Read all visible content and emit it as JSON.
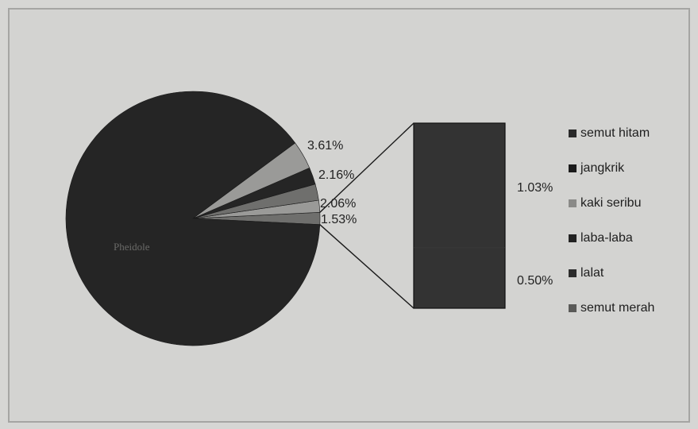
{
  "chart_data": {
    "type": "pie",
    "subtype": "bar-of-pie",
    "slices": [
      {
        "label": "Pheidole",
        "pct": 89.11,
        "value_label": ""
      },
      {
        "label": "semut hitam",
        "pct": 3.61,
        "value_label": "3.61%"
      },
      {
        "label": "jangkrik",
        "pct": 2.16,
        "value_label": "2.16%"
      },
      {
        "label": "kaki seribu",
        "pct": 2.06,
        "value_label": "2.06%"
      },
      {
        "label": "laba-laba",
        "pct": 1.53,
        "value_label": "1.53%"
      },
      {
        "label": "lalat",
        "pct": 1.03,
        "value_label": "1.03%"
      },
      {
        "label": "semut merah",
        "pct": 0.5,
        "value_label": "0.50%"
      }
    ],
    "inner_label": "Pheidole",
    "legend": [
      {
        "label": "semut hitam",
        "color": "#2a2a2a"
      },
      {
        "label": "jangkrik",
        "color": "#1b1b1b"
      },
      {
        "label": "kaki seribu",
        "color": "#8a8a88"
      },
      {
        "label": "laba-laba",
        "color": "#222222"
      },
      {
        "label": "lalat",
        "color": "#2c2c2c"
      },
      {
        "label": "semut merah",
        "color": "#5a5a58"
      }
    ],
    "legend_position": "right",
    "colors": {
      "pie_main": "#252525",
      "bar_fill": "#333333",
      "slice_light": "#9a9a98",
      "slice_mid": "#6f6f6d",
      "label_text": "#222222"
    }
  }
}
